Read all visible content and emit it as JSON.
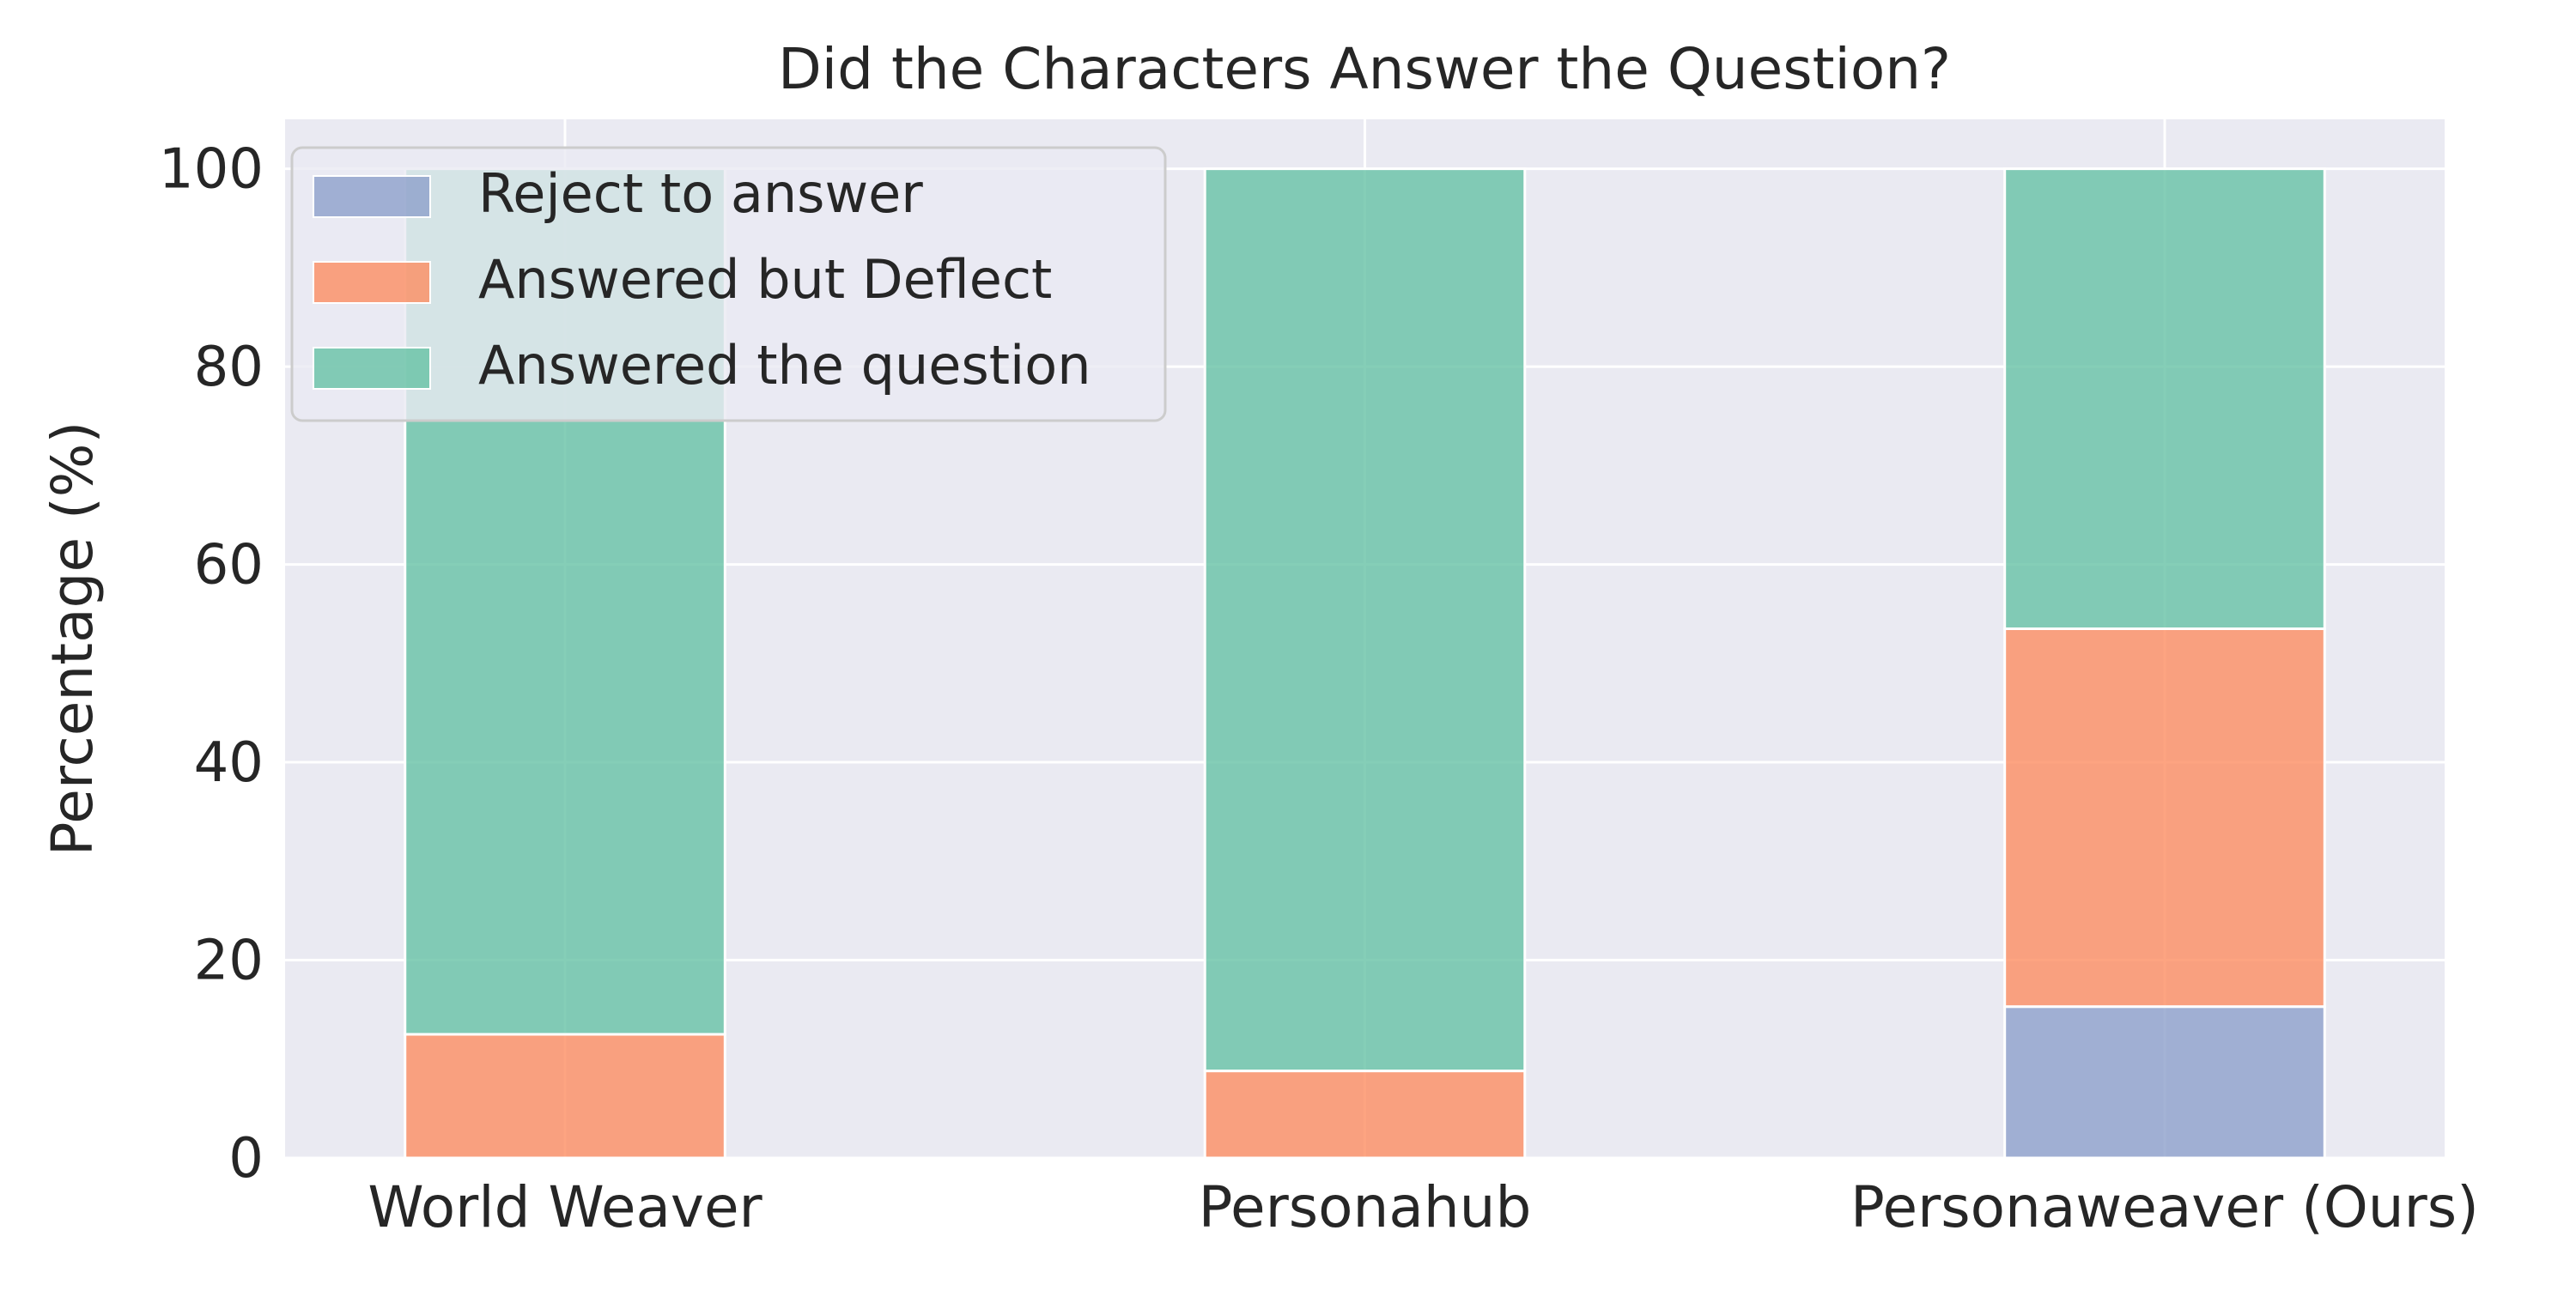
{
  "chart_data": {
    "type": "bar",
    "stacked": true,
    "title": "Did the Characters Answer the Question?",
    "xlabel": "",
    "ylabel": "Percentage (%)",
    "ylim": [
      0,
      105
    ],
    "yticks": [
      0,
      20,
      40,
      60,
      80,
      100
    ],
    "grid": true,
    "legend_position": "top-left",
    "categories": [
      "World Weaver",
      "Personahub",
      "Personaweaver (Ours)"
    ],
    "series": [
      {
        "name": "Reject to answer",
        "color": "#8da0cb",
        "values": [
          0,
          0,
          15.3
        ]
      },
      {
        "name": "Answered but Deflect",
        "color": "#fc8d62",
        "values": [
          12.5,
          8.8,
          38.2
        ]
      },
      {
        "name": "Answered the question",
        "color": "#66c2a5",
        "values": [
          87.5,
          91.2,
          46.5
        ]
      }
    ]
  }
}
